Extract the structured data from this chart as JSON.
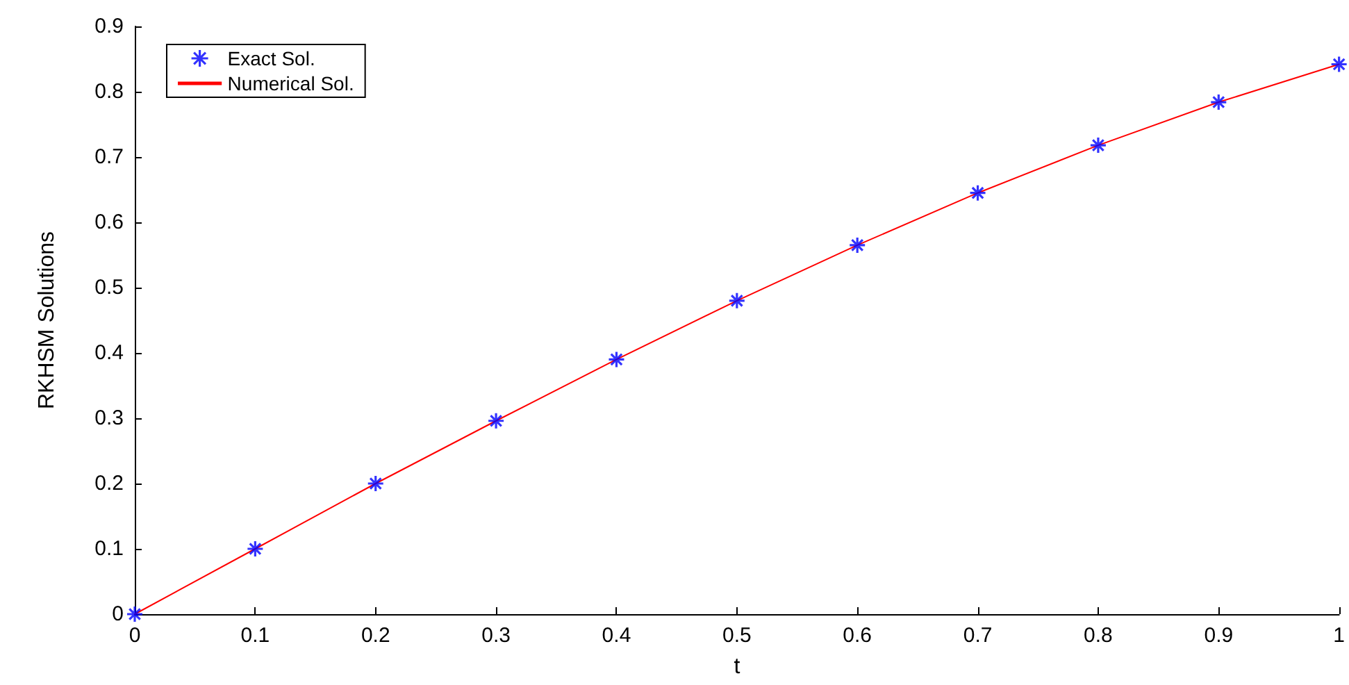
{
  "chart_data": {
    "type": "line",
    "xlabel": "t",
    "ylabel": "RKHSM Solutions",
    "x": [
      0,
      0.1,
      0.2,
      0.3,
      0.4,
      0.5,
      0.6,
      0.7,
      0.8,
      0.9,
      1
    ],
    "series": [
      {
        "name": "Exact Sol.",
        "type": "scatter",
        "marker": "cross",
        "color": "#0000ff",
        "values": [
          0,
          0.1,
          0.2,
          0.296,
          0.39,
          0.48,
          0.565,
          0.645,
          0.718,
          0.784,
          0.842
        ]
      },
      {
        "name": "Numerical Sol.",
        "type": "line",
        "marker": "none",
        "line_style": "solid",
        "color": "#ff0000",
        "values": [
          0,
          0.1,
          0.2,
          0.296,
          0.39,
          0.48,
          0.565,
          0.645,
          0.718,
          0.784,
          0.842
        ]
      }
    ],
    "xlim": [
      0,
      1
    ],
    "xticks": [
      0,
      0.1,
      0.2,
      0.3,
      0.4,
      0.5,
      0.6,
      0.7,
      0.8,
      0.9,
      1
    ],
    "ylim": [
      0,
      0.9
    ],
    "yticks": [
      0,
      0.1,
      0.2,
      0.3,
      0.4,
      0.5,
      0.6,
      0.7,
      0.8,
      0.9
    ],
    "grid": false,
    "legend": "top left"
  }
}
